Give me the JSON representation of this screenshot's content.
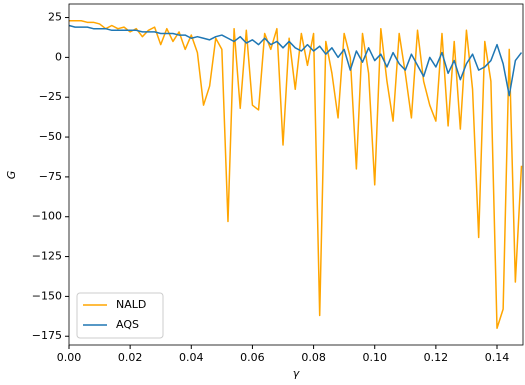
{
  "chart_data": {
    "type": "line",
    "xlabel": "γ",
    "ylabel": "G",
    "x": [
      0,
      0.002,
      0.004,
      0.006,
      0.008,
      0.01,
      0.012,
      0.014,
      0.016,
      0.018,
      0.02,
      0.022,
      0.024,
      0.026,
      0.028,
      0.03,
      0.032,
      0.034,
      0.036,
      0.038,
      0.04,
      0.042,
      0.044,
      0.046,
      0.048,
      0.05,
      0.052,
      0.054,
      0.056,
      0.058,
      0.06,
      0.062,
      0.064,
      0.066,
      0.068,
      0.07,
      0.072,
      0.074,
      0.076,
      0.078,
      0.08,
      0.082,
      0.084,
      0.086,
      0.088,
      0.09,
      0.092,
      0.094,
      0.096,
      0.098,
      0.1,
      0.102,
      0.104,
      0.106,
      0.108,
      0.11,
      0.112,
      0.114,
      0.116,
      0.118,
      0.12,
      0.122,
      0.124,
      0.126,
      0.128,
      0.13,
      0.132,
      0.134,
      0.136,
      0.138,
      0.14,
      0.142,
      0.144,
      0.146,
      0.148
    ],
    "series": [
      {
        "name": "NALD",
        "color": "#ffa500",
        "values": [
          23,
          23,
          23,
          22,
          22,
          21,
          18,
          20,
          18,
          19,
          16,
          18,
          13,
          17,
          19,
          8,
          18,
          10,
          16,
          5,
          14,
          3,
          -30,
          -18,
          12,
          5,
          -103,
          18,
          -32,
          17,
          -30,
          -33,
          15,
          5,
          18,
          -55,
          12,
          -20,
          15,
          -5,
          15,
          -162,
          10,
          -10,
          -38,
          15,
          0,
          -70,
          15,
          -10,
          -80,
          18,
          -15,
          -40,
          15,
          -10,
          -38,
          17,
          -15,
          -30,
          -40,
          15,
          -43,
          10,
          -45,
          17,
          -20,
          -113,
          10,
          -15,
          -170,
          -158,
          5,
          -141,
          -68
        ]
      },
      {
        "name": "AQS",
        "color": "#1f77b4",
        "values": [
          20,
          19,
          19,
          19,
          18,
          18,
          18,
          17,
          17,
          17,
          17,
          17,
          16,
          16,
          16,
          15,
          15,
          15,
          14,
          14,
          12,
          13,
          12,
          11,
          13,
          14,
          12,
          10,
          13,
          9,
          11,
          8,
          12,
          8,
          10,
          6,
          10,
          6,
          4,
          8,
          4,
          7,
          2,
          6,
          0,
          5,
          -8,
          4,
          -3,
          6,
          -2,
          2,
          -6,
          3,
          -4,
          -8,
          2,
          -5,
          -12,
          0,
          -6,
          3,
          -10,
          -2,
          -14,
          -4,
          2,
          -8,
          -6,
          -2,
          8,
          -4,
          -24,
          -2,
          3
        ]
      }
    ],
    "xlim": [
      0,
      0.1485
    ],
    "ylim": [
      -180.5,
      33.5
    ],
    "xticks": [
      {
        "value": 0,
        "label": "0.00"
      },
      {
        "value": 0.02,
        "label": "0.02"
      },
      {
        "value": 0.04,
        "label": "0.04"
      },
      {
        "value": 0.06,
        "label": "0.06"
      },
      {
        "value": 0.08,
        "label": "0.08"
      },
      {
        "value": 0.1,
        "label": "0.10"
      },
      {
        "value": 0.12,
        "label": "0.12"
      },
      {
        "value": 0.14,
        "label": "0.14"
      }
    ],
    "yticks": [
      25,
      0,
      {
        "value": -25,
        "label": "−25"
      },
      {
        "value": -50,
        "label": "−50"
      },
      {
        "value": -75,
        "label": "−75"
      },
      {
        "value": -100,
        "label": "−100"
      },
      {
        "value": -125,
        "label": "−125"
      },
      {
        "value": -150,
        "label": "−150"
      },
      {
        "value": -175,
        "label": "−175"
      }
    ],
    "legend": "lower left"
  }
}
